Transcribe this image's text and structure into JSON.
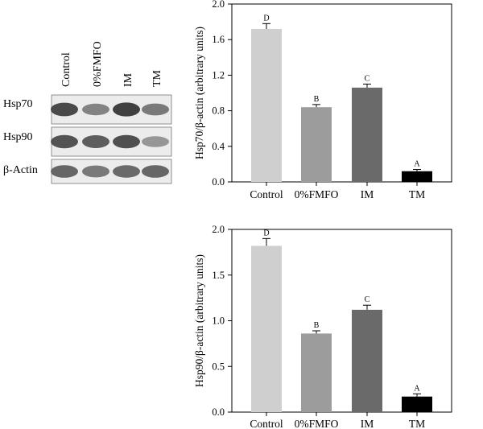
{
  "blot": {
    "lanes": [
      "Control",
      "0%FMFO",
      "IM",
      "TM"
    ],
    "rows": [
      {
        "label": "Hsp70",
        "intensity": [
          0.85,
          0.55,
          0.9,
          0.6
        ]
      },
      {
        "label": "Hsp90",
        "intensity": [
          0.8,
          0.75,
          0.82,
          0.45
        ]
      },
      {
        "label": "β-Actin",
        "intensity": [
          0.7,
          0.6,
          0.68,
          0.7
        ]
      }
    ]
  },
  "chart_data": [
    {
      "type": "bar",
      "categories": [
        "Control",
        "0%FMFO",
        "IM",
        "TM"
      ],
      "values": [
        1.72,
        0.84,
        1.06,
        0.12
      ],
      "errors": [
        0.06,
        0.03,
        0.04,
        0.02
      ],
      "significance_letters": [
        "D",
        "B",
        "C",
        "A"
      ],
      "bar_colors": [
        "#cfcfcf",
        "#9c9c9c",
        "#6a6a6a",
        "#000000"
      ],
      "ylabel": "Hsp70/β-actin (arbitrary units)",
      "ylim": [
        0,
        2.0
      ],
      "yticks": [
        0.0,
        0.4,
        0.8,
        1.2,
        1.6,
        2.0
      ],
      "ytick_labels": [
        "0.0",
        "0.4",
        "0.8",
        "1.2",
        "1.6",
        "2.0"
      ]
    },
    {
      "type": "bar",
      "categories": [
        "Control",
        "0%FMFO",
        "IM",
        "TM"
      ],
      "values": [
        1.82,
        0.86,
        1.12,
        0.17
      ],
      "errors": [
        0.08,
        0.03,
        0.05,
        0.03
      ],
      "significance_letters": [
        "D",
        "B",
        "C",
        "A"
      ],
      "bar_colors": [
        "#cfcfcf",
        "#9c9c9c",
        "#6a6a6a",
        "#000000"
      ],
      "ylabel": "Hsp90/β-actin (arbitrary units)",
      "ylim": [
        0,
        2.0
      ],
      "yticks": [
        0.0,
        0.5,
        1.0,
        1.5,
        2.0
      ],
      "ytick_labels": [
        "0.0",
        "0.5",
        "1.0",
        "1.5",
        "2.0"
      ]
    }
  ]
}
